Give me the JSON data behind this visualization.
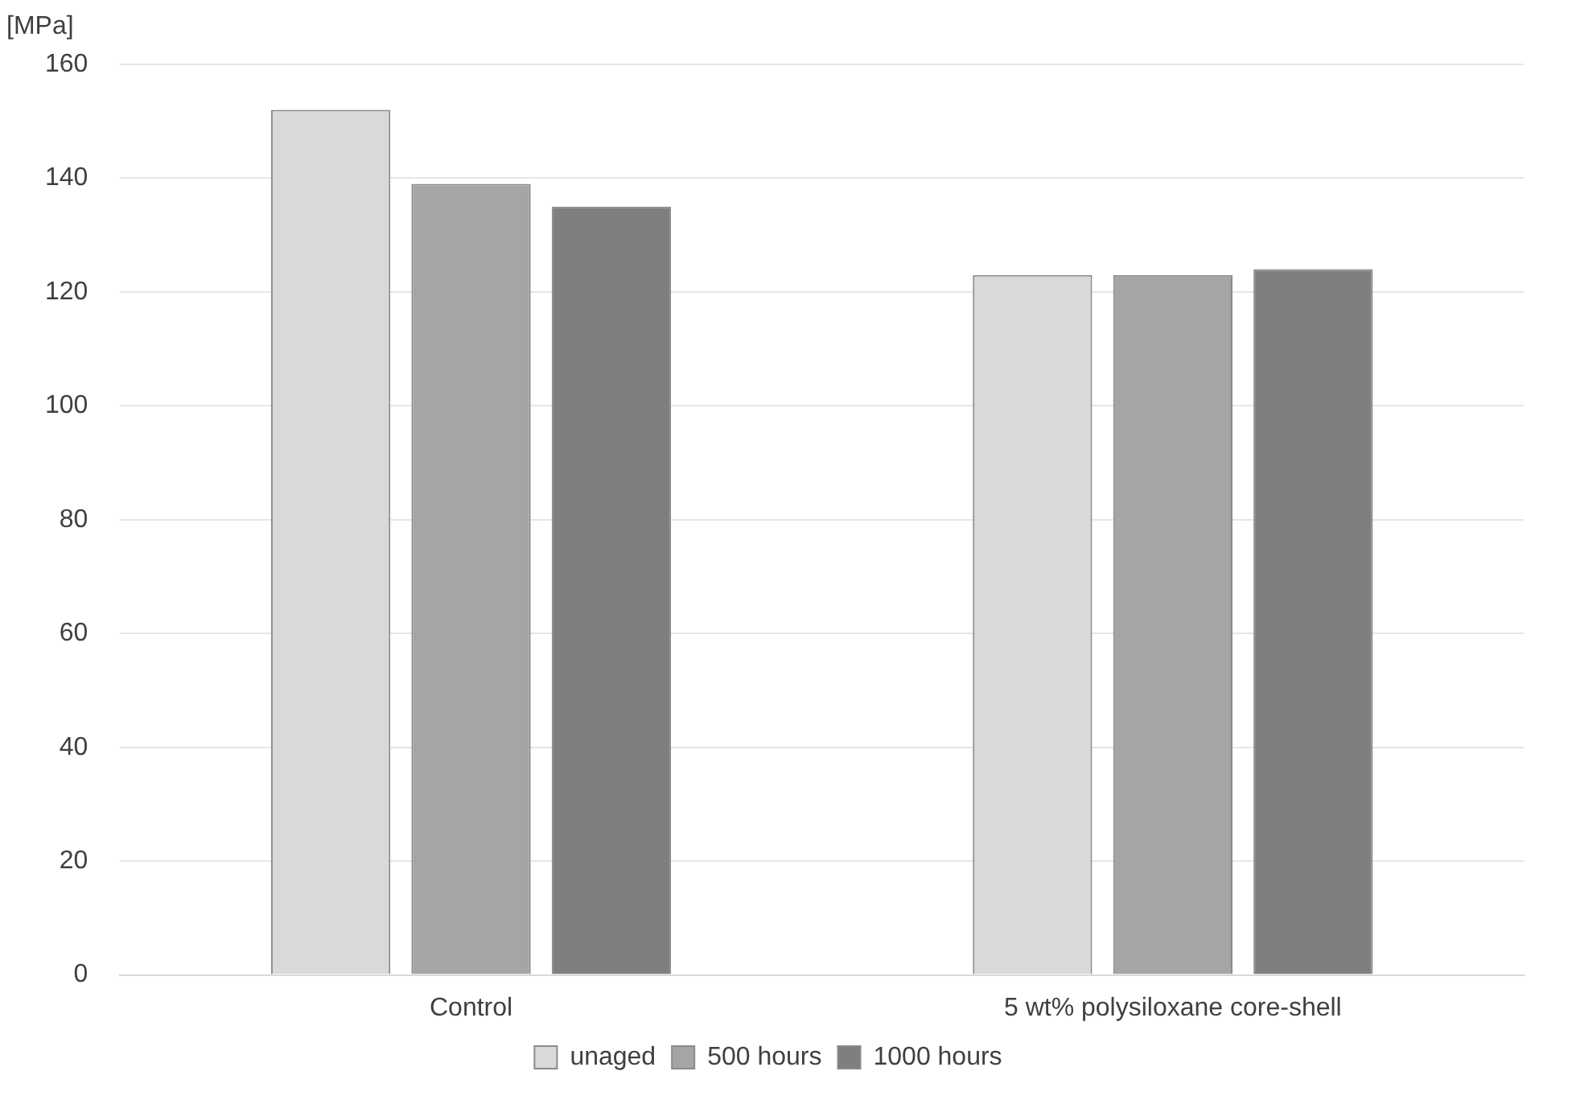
{
  "chart_data": {
    "type": "bar",
    "ylabel": "[MPa]",
    "categories": [
      "Control",
      "5 wt% polysiloxane core-shell"
    ],
    "series": [
      {
        "name": "unaged",
        "color": "#d9d9d9",
        "values": [
          152,
          123
        ]
      },
      {
        "name": "500 hours",
        "color": "#a5a5a5",
        "values": [
          139,
          123
        ]
      },
      {
        "name": "1000 hours",
        "color": "#7f7f7f",
        "values": [
          135,
          124
        ]
      }
    ],
    "ylim": [
      0,
      160
    ],
    "yticks": [
      0,
      20,
      40,
      60,
      80,
      100,
      120,
      140,
      160
    ],
    "grid": "y",
    "legend": "bottom"
  }
}
